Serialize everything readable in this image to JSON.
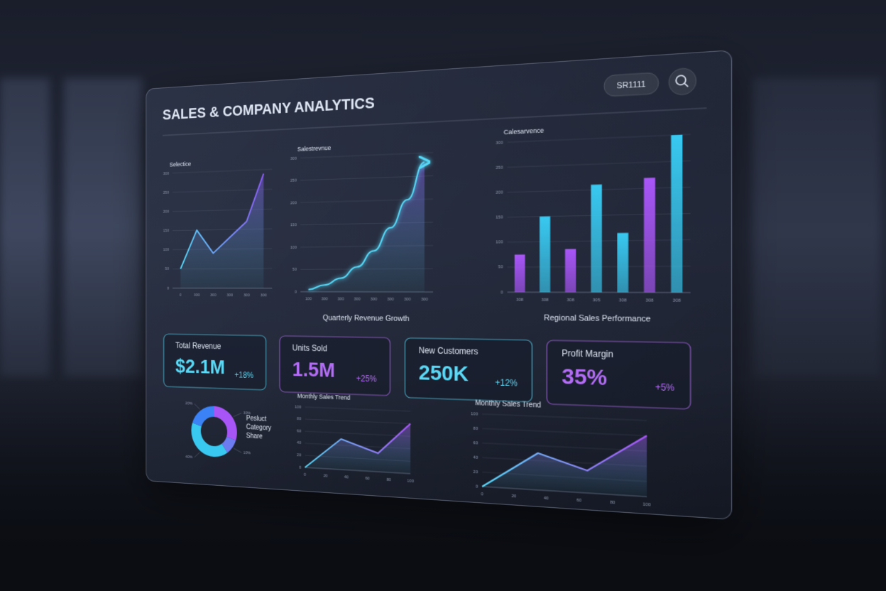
{
  "header": {
    "title": "SALES & COMPANY ANALYTICS",
    "search_text": "SR1111"
  },
  "chart_data": [
    {
      "type": "line",
      "title": "Selectice",
      "categories": [
        "0",
        "300",
        "300",
        "300",
        "300",
        "300"
      ],
      "values": [
        50,
        150,
        90,
        130,
        170,
        290
      ],
      "ylim": [
        0,
        300
      ],
      "yticks": [
        0,
        50,
        100,
        150,
        200,
        250,
        300
      ],
      "colors": [
        "#56d8f7",
        "#8b5cf6"
      ],
      "grid": true
    },
    {
      "type": "line",
      "title": "Salestrevnue",
      "caption": "Quarterly Revenue Growth",
      "categories": [
        "100",
        "300",
        "300",
        "300",
        "300",
        "300",
        "300",
        "300"
      ],
      "values": [
        5,
        15,
        30,
        55,
        90,
        140,
        200,
        280
      ],
      "ylim": [
        0,
        300
      ],
      "yticks": [
        0,
        50,
        100,
        150,
        200,
        250,
        300
      ],
      "colors": [
        "#56d8f7",
        "#8b5cf6"
      ],
      "grid": true,
      "arrow": true
    },
    {
      "type": "bar",
      "title": "Calesarvence",
      "caption": "Regional Sales Performance",
      "categories": [
        "308",
        "308",
        "308",
        "305",
        "308",
        "308",
        "308"
      ],
      "values": [
        75,
        150,
        85,
        210,
        115,
        220,
        300
      ],
      "ylim": [
        0,
        300
      ],
      "yticks": [
        0,
        50,
        100,
        150,
        200,
        250,
        300
      ],
      "colors": [
        "#a855f7",
        "#38c8f0",
        "#a855f7",
        "#38c8f0",
        "#38c8f0",
        "#a855f7",
        "#38c8f0"
      ],
      "grid": true
    },
    {
      "type": "pie",
      "title": "Pesluct Category Share",
      "values": [
        30,
        10,
        40,
        20
      ],
      "value_labels": [
        "30%",
        "10%",
        "40%",
        "20%"
      ],
      "colors": [
        "#a855f7",
        "#6d7cf0",
        "#38c8f0",
        "#3b82f6"
      ]
    },
    {
      "type": "line",
      "title": "Monthly Sales Trend",
      "x": [
        0,
        35,
        70,
        100
      ],
      "values": [
        0,
        50,
        30,
        80
      ],
      "xlim": [
        0,
        100
      ],
      "xticks": [
        0,
        20,
        40,
        60,
        80,
        100
      ],
      "ylim": [
        0,
        100
      ],
      "yticks": [
        0,
        20,
        40,
        60,
        80,
        100
      ],
      "colors": [
        "#56d8f7",
        "#a855f7"
      ],
      "grid": true
    },
    {
      "type": "line",
      "title": "Monthly Sales Trend",
      "x": [
        0,
        35,
        65,
        100
      ],
      "values": [
        0,
        50,
        30,
        80
      ],
      "xlim": [
        0,
        100
      ],
      "xticks": [
        0,
        20,
        40,
        60,
        80,
        100
      ],
      "ylim": [
        0,
        100
      ],
      "yticks": [
        0,
        20,
        40,
        60,
        80,
        100
      ],
      "colors": [
        "#56d8f7",
        "#a855f7"
      ],
      "grid": true
    }
  ],
  "kpis": [
    {
      "label": "Total Revenue",
      "value": "$2.1M",
      "change": "+18%",
      "color": "#5ad8f5"
    },
    {
      "label": "Units Sold",
      "value": "1.5M",
      "change": "+25%",
      "color": "#b36cf5"
    },
    {
      "label": "New Customers",
      "value": "250K",
      "change": "+12%",
      "color": "#5ad8f5"
    },
    {
      "label": "Profit Margin",
      "value": "35%",
      "change": "+5%",
      "color": "#b36cf5"
    }
  ]
}
